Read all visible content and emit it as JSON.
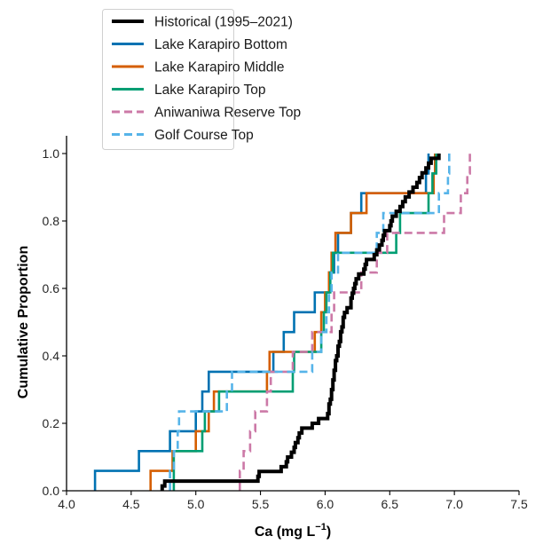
{
  "chart_data": {
    "type": "line",
    "subtype": "empirical-cdf-step",
    "title": "",
    "xlabel": "Ca (mg L",
    "xlabel_superscript": "−1",
    "xlabel_suffix": ")",
    "ylabel": "Cumulative Proportion",
    "xlim": [
      4.0,
      7.5
    ],
    "ylim": [
      0.0,
      1.05
    ],
    "xticks": [
      4.0,
      4.5,
      5.0,
      5.5,
      6.0,
      6.5,
      7.0,
      7.5
    ],
    "xtick_labels": [
      "4.0",
      "4.5",
      "5.0",
      "5.5",
      "6.0",
      "6.5",
      "7.0",
      "7.5"
    ],
    "yticks": [
      0.0,
      0.2,
      0.4,
      0.6,
      0.8,
      1.0
    ],
    "ytick_labels": [
      "0.0",
      "0.2",
      "0.4",
      "0.6",
      "0.8",
      "1.0"
    ],
    "grid": false,
    "legend_position": "top-center",
    "series": [
      {
        "name": "Historical (1995–2021)",
        "color": "#000000",
        "style": "solid",
        "width": "thick",
        "values": [
          4.74,
          4.76,
          5.48,
          5.49,
          5.66,
          5.7,
          5.71,
          5.74,
          5.76,
          5.77,
          5.79,
          5.8,
          5.82,
          5.9,
          5.95,
          6.02,
          6.03,
          6.03,
          6.04,
          6.05,
          6.05,
          6.06,
          6.06,
          6.07,
          6.07,
          6.08,
          6.08,
          6.09,
          6.1,
          6.1,
          6.11,
          6.12,
          6.12,
          6.13,
          6.14,
          6.14,
          6.15,
          6.17,
          6.2,
          6.2,
          6.21,
          6.22,
          6.23,
          6.24,
          6.26,
          6.3,
          6.31,
          6.32,
          6.38,
          6.4,
          6.42,
          6.44,
          6.45,
          6.46,
          6.5,
          6.51,
          6.52,
          6.55,
          6.58,
          6.6,
          6.62,
          6.65,
          6.68,
          6.71,
          6.73,
          6.75,
          6.78,
          6.8,
          6.82,
          6.88
        ]
      },
      {
        "name": "Lake Karapiro Bottom",
        "color": "#0072b2",
        "style": "solid",
        "width": "normal",
        "values": [
          4.22,
          4.56,
          4.8,
          5.0,
          5.05,
          5.1,
          5.6,
          5.68,
          5.76,
          5.92,
          6.03,
          6.07,
          6.1,
          6.2,
          6.28,
          6.78,
          6.8
        ]
      },
      {
        "name": "Lake Karapiro Middle",
        "color": "#d55e00",
        "style": "solid",
        "width": "normal",
        "values": [
          4.65,
          4.82,
          5.0,
          5.1,
          5.14,
          5.55,
          5.57,
          5.92,
          5.97,
          6.0,
          6.03,
          6.05,
          6.08,
          6.2,
          6.32,
          6.84,
          6.85
        ]
      },
      {
        "name": "Lake Karapiro Top",
        "color": "#009e73",
        "style": "solid",
        "width": "normal",
        "values": [
          4.83,
          4.83,
          5.05,
          5.07,
          5.18,
          5.75,
          5.76,
          5.97,
          5.99,
          6.01,
          6.04,
          6.06,
          6.55,
          6.58,
          6.8,
          6.83,
          6.86
        ]
      },
      {
        "name": "Aniwaniwa Reserve Top",
        "color": "#cc79a7",
        "style": "dashed",
        "width": "normal",
        "values": [
          5.34,
          5.37,
          5.42,
          5.46,
          5.55,
          5.58,
          5.75,
          5.9,
          6.05,
          6.07,
          6.28,
          6.4,
          6.48,
          6.92,
          7.05,
          7.1,
          7.12
        ]
      },
      {
        "name": "Golf Course Top",
        "color": "#56b4e9",
        "style": "dashed",
        "width": "normal",
        "values": [
          4.8,
          4.83,
          4.86,
          4.87,
          5.24,
          5.28,
          5.9,
          5.97,
          6.01,
          6.03,
          6.05,
          6.1,
          6.4,
          6.45,
          6.88,
          6.95,
          6.96
        ]
      }
    ]
  }
}
